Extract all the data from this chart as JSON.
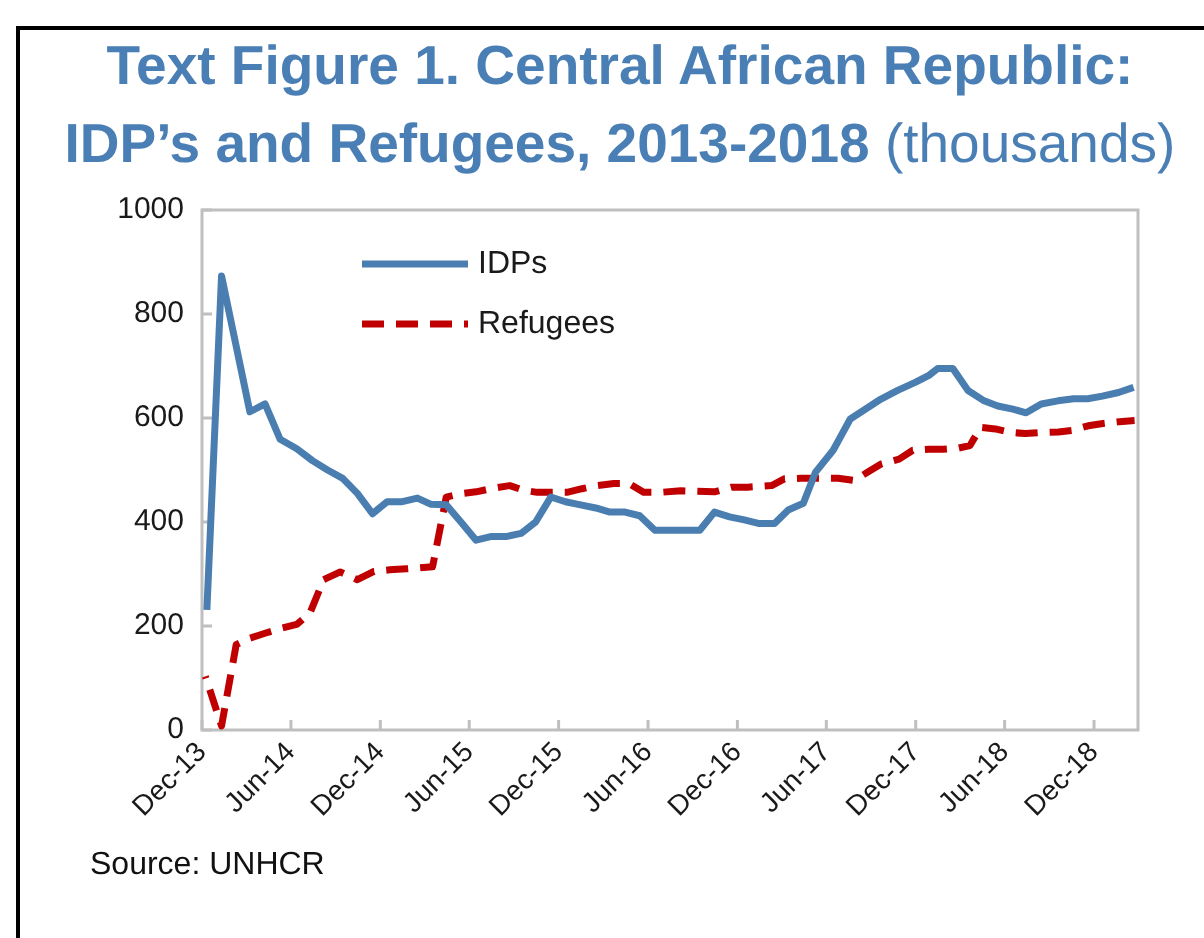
{
  "chart_data": {
    "type": "line",
    "title": "Text Figure 1. Central African Republic: IDP’s and Refugees, 2013-2018 (thousands)",
    "annotations": [
      "Source: UNHCR"
    ],
    "xlim": [
      "2013-12-01",
      "2019-03-01"
    ],
    "xticks": [
      {
        "value": "2013-12-01",
        "label": "Dec-13"
      },
      {
        "value": "2014-06-01",
        "label": "Jun-14"
      },
      {
        "value": "2014-12-01",
        "label": "Dec-14"
      },
      {
        "value": "2015-06-01",
        "label": "Jun-15"
      },
      {
        "value": "2015-12-01",
        "label": "Dec-15"
      },
      {
        "value": "2016-06-01",
        "label": "Jun-16"
      },
      {
        "value": "2016-12-01",
        "label": "Dec-16"
      },
      {
        "value": "2017-06-01",
        "label": "Jun-17"
      },
      {
        "value": "2017-12-01",
        "label": "Dec-17"
      },
      {
        "value": "2018-06-01",
        "label": "Jun-18"
      },
      {
        "value": "2018-12-01",
        "label": "Dec-18"
      }
    ],
    "ylim": [
      0,
      1000
    ],
    "yticks": [
      0,
      200,
      400,
      600,
      800,
      1000
    ],
    "legend": "top left",
    "marker": "none",
    "series": [
      {
        "name": "IDPs",
        "color": "#4a7eb0",
        "line_style": "solid",
        "x": [
          "2013-12-11",
          "2014-01-10",
          "2014-03-09",
          "2014-04-09",
          "2014-05-10",
          "2014-06-13",
          "2014-07-15",
          "2014-08-15",
          "2014-09-15",
          "2014-10-15",
          "2014-11-15",
          "2014-12-15",
          "2015-01-15",
          "2015-02-15",
          "2015-03-15",
          "2015-04-15",
          "2015-05-15",
          "2015-06-15",
          "2015-07-15",
          "2015-08-15",
          "2015-09-15",
          "2015-10-15",
          "2015-11-15",
          "2015-12-15",
          "2016-01-15",
          "2016-02-15",
          "2016-03-15",
          "2016-04-15",
          "2016-05-15",
          "2016-06-15",
          "2016-07-15",
          "2016-08-15",
          "2016-09-15",
          "2016-10-15",
          "2016-11-15",
          "2016-12-15",
          "2017-01-15",
          "2017-02-15",
          "2017-03-15",
          "2017-04-15",
          "2017-05-10",
          "2017-06-15",
          "2017-07-20",
          "2017-08-15",
          "2017-09-20",
          "2017-10-25",
          "2017-12-01",
          "2017-12-28",
          "2018-01-15",
          "2018-02-15",
          "2018-03-18",
          "2018-04-20",
          "2018-05-18",
          "2018-06-18",
          "2018-07-15",
          "2018-08-15",
          "2018-09-18",
          "2018-10-20",
          "2018-11-18",
          "2018-12-18",
          "2019-01-20",
          "2019-02-20"
        ],
        "values": [
          231,
          873,
          612,
          627,
          559,
          541,
          518,
          500,
          484,
          455,
          416,
          439,
          439,
          446,
          434,
          433,
          400,
          365,
          372,
          372,
          378,
          400,
          448,
          439,
          433,
          427,
          419,
          419,
          412,
          384,
          384,
          384,
          384,
          419,
          410,
          404,
          397,
          397,
          423,
          436,
          496,
          538,
          598,
          614,
          636,
          653,
          669,
          682,
          695,
          695,
          653,
          633,
          623,
          617,
          610,
          627,
          633,
          637,
          637,
          642,
          649,
          659
        ]
      },
      {
        "name": "Refugees",
        "color": "#c00000",
        "line_style": "dashed",
        "x": [
          "2013-12-08",
          "2014-01-10",
          "2014-02-09",
          "2014-03-07",
          "2014-04-09",
          "2014-05-10",
          "2014-06-13",
          "2014-07-10",
          "2014-08-07",
          "2014-09-10",
          "2014-10-15",
          "2014-11-18",
          "2014-12-20",
          "2015-01-23",
          "2015-02-20",
          "2015-03-18",
          "2015-04-15",
          "2015-05-18",
          "2015-06-15",
          "2015-07-20",
          "2015-08-23",
          "2015-09-20",
          "2015-10-18",
          "2015-11-20",
          "2015-12-18",
          "2016-01-18",
          "2016-02-18",
          "2016-03-23",
          "2016-04-23",
          "2016-05-23",
          "2016-06-26",
          "2016-08-07",
          "2016-10-15",
          "2016-11-19",
          "2016-12-22",
          "2017-02-09",
          "2017-03-07",
          "2017-04-10",
          "2017-05-22",
          "2017-06-25",
          "2017-07-28",
          "2017-08-25",
          "2017-09-22",
          "2017-10-28",
          "2017-11-25",
          "2017-12-28",
          "2018-01-25",
          "2018-02-26",
          "2018-03-22",
          "2018-04-13",
          "2018-05-13",
          "2018-06-16",
          "2018-07-13",
          "2018-08-16",
          "2018-09-19",
          "2018-10-16",
          "2018-11-19",
          "2018-12-16",
          "2019-01-22",
          "2019-02-22"
        ],
        "values": [
          103,
          8,
          164,
          176,
          186,
          195,
          203,
          225,
          289,
          304,
          289,
          305,
          308,
          310,
          312,
          314,
          448,
          455,
          458,
          465,
          470,
          461,
          457,
          457,
          457,
          464,
          470,
          474,
          474,
          457,
          457,
          460,
          458,
          467,
          467,
          470,
          483,
          484,
          484,
          484,
          480,
          496,
          512,
          521,
          538,
          540,
          540,
          542,
          547,
          582,
          579,
          572,
          570,
          572,
          573,
          576,
          585,
          589,
          593,
          595
        ]
      }
    ]
  }
}
